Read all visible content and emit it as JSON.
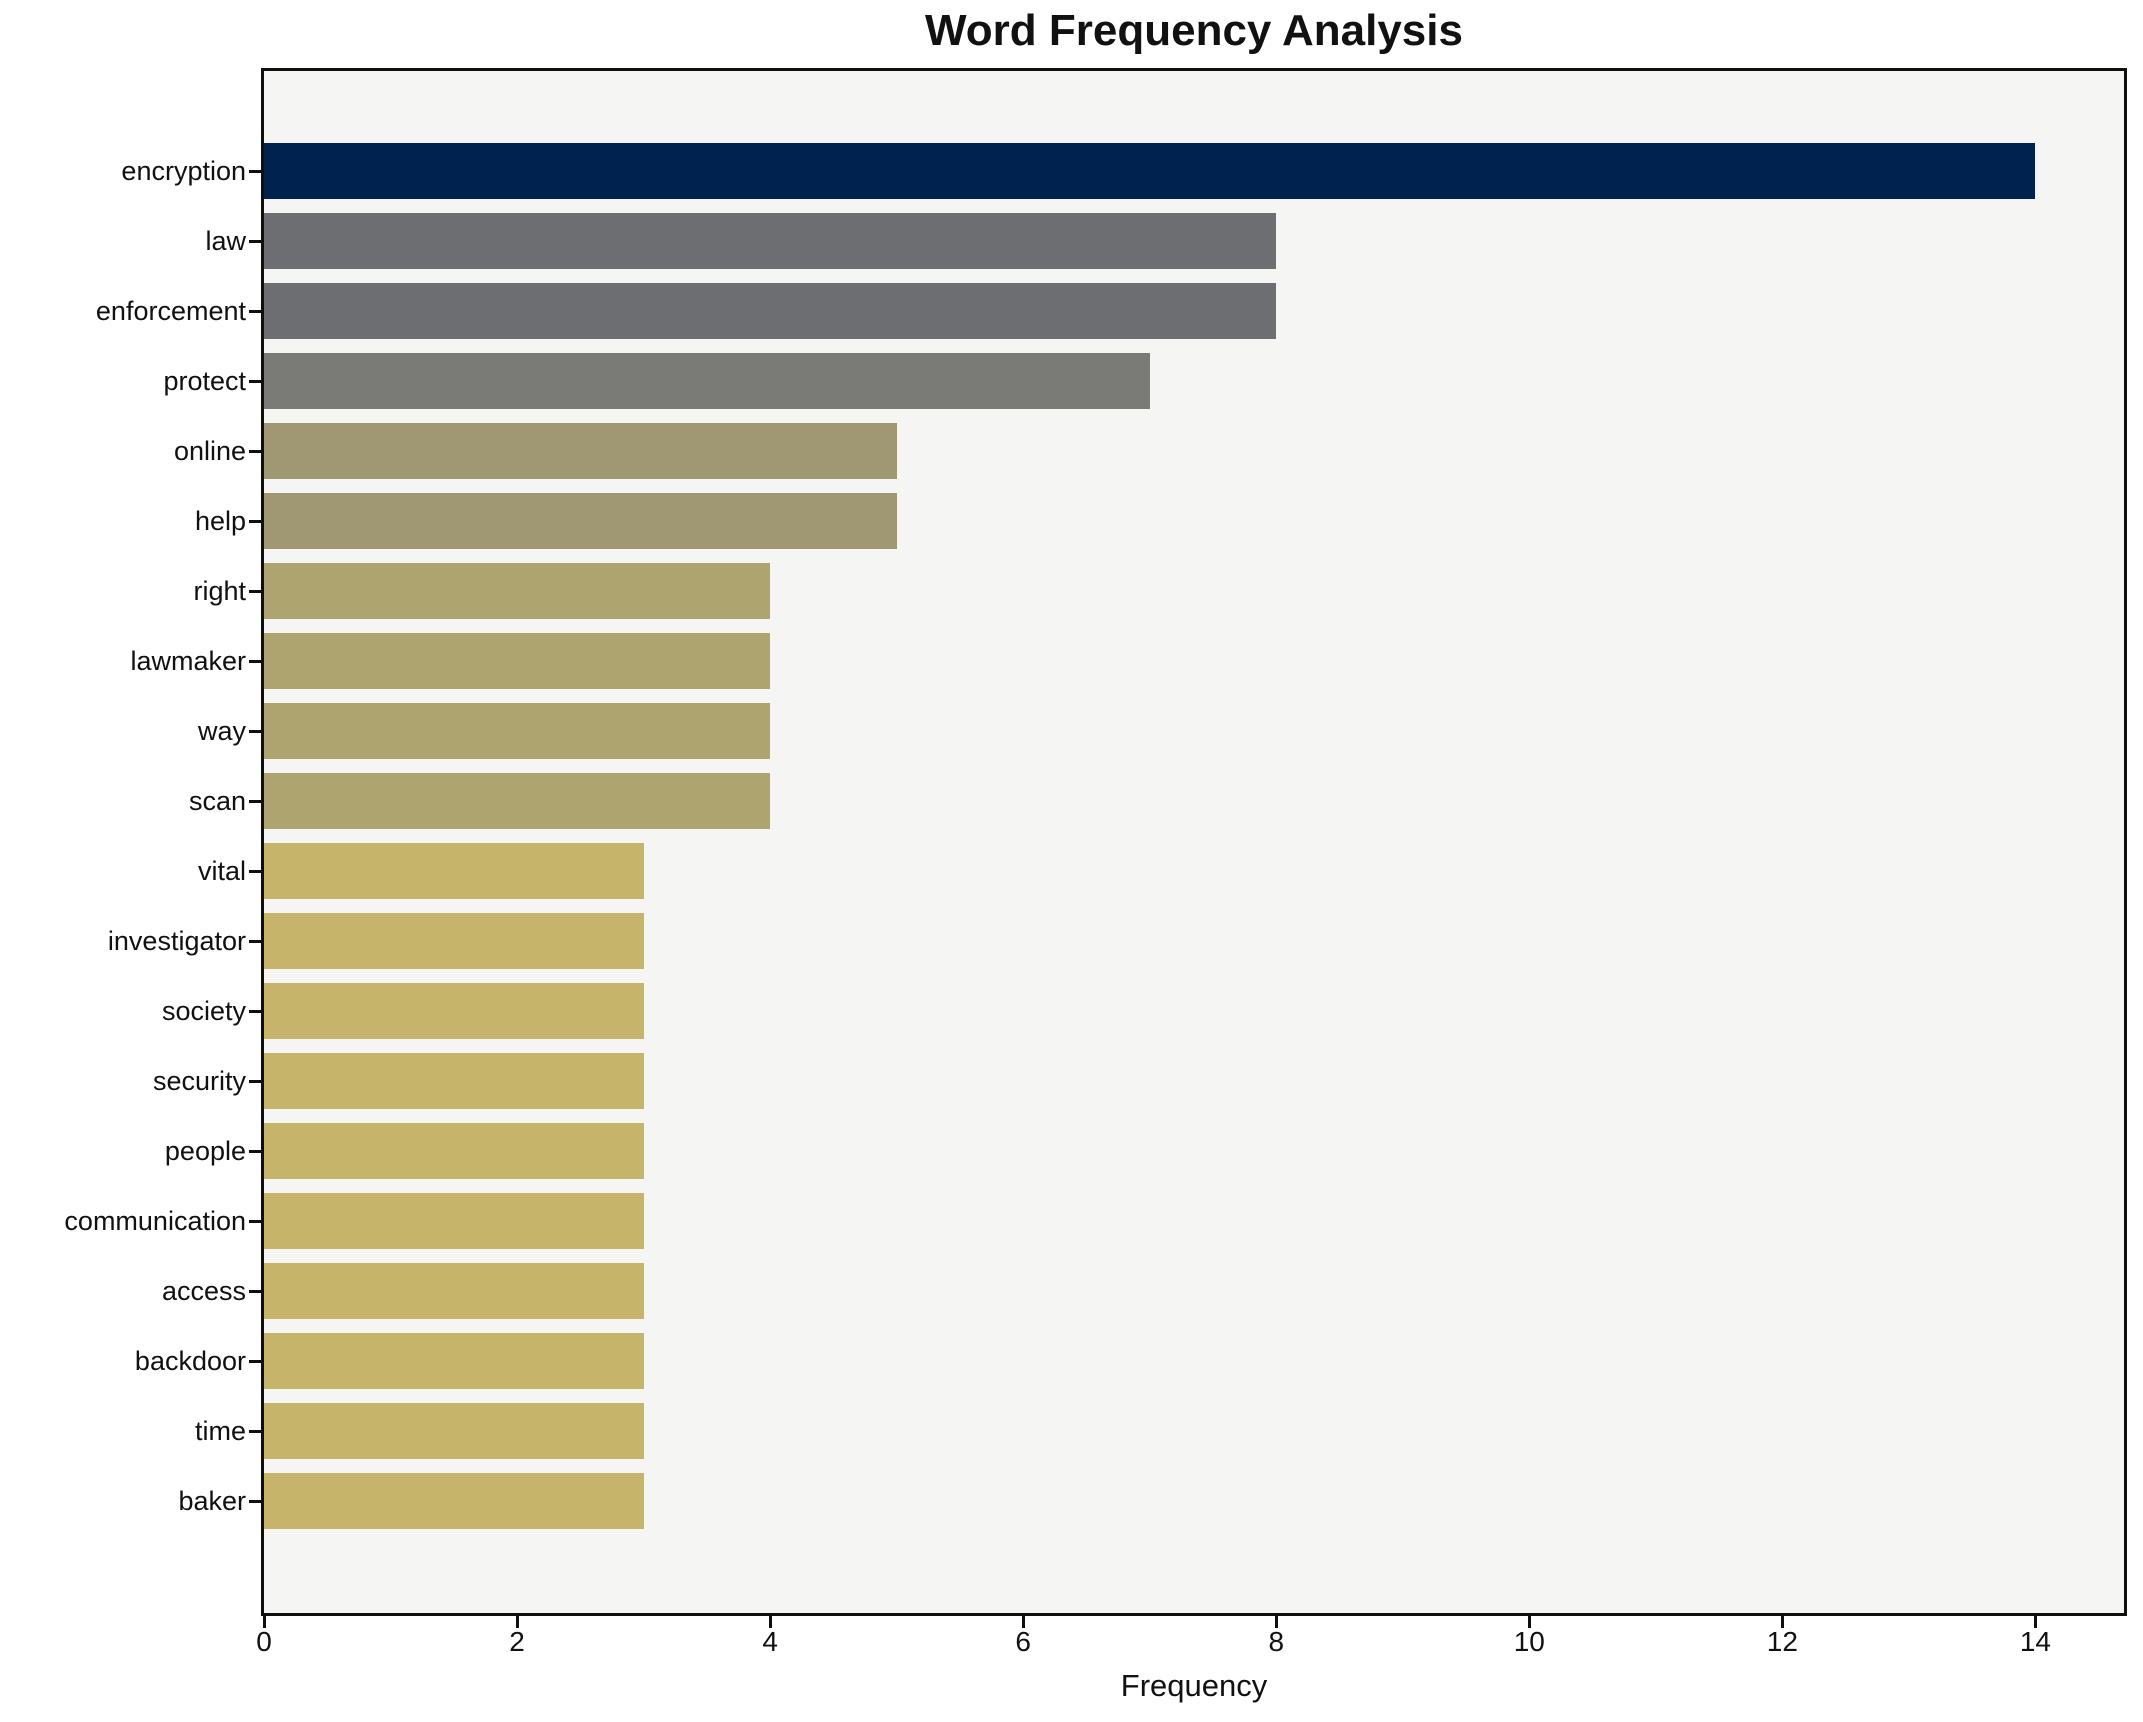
{
  "chart_data": {
    "type": "bar",
    "orientation": "horizontal",
    "title": "Word Frequency Analysis",
    "xlabel": "Frequency",
    "ylabel": "",
    "categories": [
      "encryption",
      "law",
      "enforcement",
      "protect",
      "online",
      "help",
      "right",
      "lawmaker",
      "way",
      "scan",
      "vital",
      "investigator",
      "society",
      "security",
      "people",
      "communication",
      "access",
      "backdoor",
      "time",
      "baker"
    ],
    "values": [
      14,
      8,
      8,
      7,
      5,
      5,
      4,
      4,
      4,
      4,
      3,
      3,
      3,
      3,
      3,
      3,
      3,
      3,
      3,
      3
    ],
    "bar_colors": [
      "#00224e",
      "#6c6e72",
      "#6c6e72",
      "#7a7a77",
      "#a09873",
      "#a09873",
      "#ada46f",
      "#ada46f",
      "#ada46f",
      "#ada46f",
      "#c5b469",
      "#c5b469",
      "#c5b469",
      "#c5b469",
      "#c5b469",
      "#c5b469",
      "#c5b469",
      "#c5b469",
      "#c5b469",
      "#c5b469"
    ],
    "xticks": [
      0,
      2,
      4,
      6,
      8,
      10,
      12,
      14
    ],
    "xlim": [
      0,
      14.7
    ],
    "grid": false,
    "legend": false,
    "plot_background": "#f5f5f4",
    "axis_color": "#0f0f0f",
    "title_color": "#111111"
  }
}
